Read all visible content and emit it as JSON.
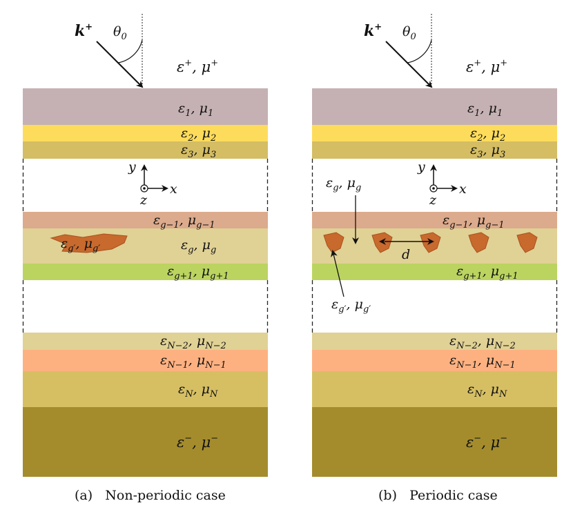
{
  "colors": {
    "layer_1": "#c5b1b3",
    "layer_2": "#fedc5b",
    "layer_3": "#d4bd63",
    "layer_g_minus_1": "#dcaa8c",
    "layer_g": "#e0d195",
    "layer_g_plus_1": "#bbd460",
    "layer_N_minus_2": "#e0d195",
    "layer_N_minus_1": "#fdb181",
    "layer_N": "#d6bf63",
    "substrate": "#a48c2d",
    "inclusion": "#c8692d",
    "inclusion_edge": "#a8531e"
  },
  "symbols": {
    "k": "k",
    "plus": "+",
    "theta": "θ",
    "zero": "0",
    "eps": "ε",
    "mu": "μ",
    "comma": ",",
    "minus_sign": "−",
    "y_axis": "y",
    "x_axis": "x",
    "z_axis": "z",
    "d": "d",
    "sub_1": "1",
    "sub_2": "2",
    "sub_3": "3",
    "sub_g": "g",
    "sub_g_minus_1": "g−1",
    "sub_g_plus_1": "g+1",
    "sub_g_prime": "g′",
    "sub_N_minus_2": "N−2",
    "sub_N_minus_1": "N−1",
    "sub_N": "N"
  },
  "captions": {
    "left": "(a)   Non-periodic case",
    "right": "(b)   Periodic case"
  }
}
